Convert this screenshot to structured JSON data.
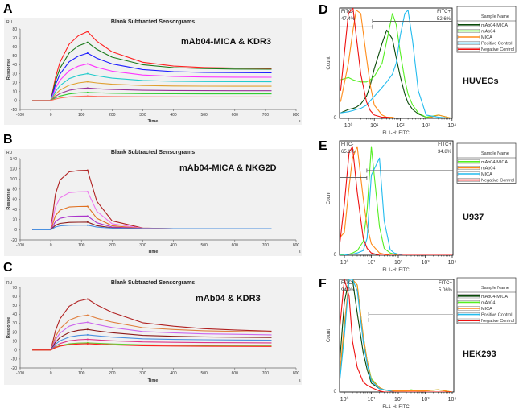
{
  "chart_data": [
    {
      "panel": "A",
      "type": "line",
      "title": "Blank Subtracted Sensorgrams",
      "annotation": "mAb04-MICA  & KDR3",
      "xlabel": "Time",
      "xunit": "s",
      "ylabel": "Response",
      "yunit": "RU",
      "xlim": [
        -100,
        800
      ],
      "ylim": [
        -10,
        80
      ],
      "ystep": 10,
      "xstep": 100,
      "grid": false,
      "x": [
        -60,
        0,
        15,
        30,
        60,
        90,
        120,
        150,
        200,
        300,
        400,
        500,
        600,
        720
      ],
      "series": [
        {
          "color": "#ff2020",
          "values": [
            0,
            0,
            25.4,
            42.8,
            63,
            72.4,
            77,
            66.3,
            54.4,
            42.8,
            38.5,
            36.9,
            36.3,
            36
          ]
        },
        {
          "color": "#1a7a1a",
          "values": [
            0,
            0,
            21.5,
            36.1,
            53.2,
            61.1,
            65,
            57.2,
            48.5,
            40,
            36.8,
            35.7,
            35.2,
            35
          ]
        },
        {
          "color": "#1a1aff",
          "values": [
            0,
            0,
            17.5,
            29.5,
            43.4,
            49.8,
            53,
            47.3,
            40.9,
            34.6,
            32.3,
            31.5,
            31.2,
            31
          ]
        },
        {
          "color": "#ff33ff",
          "values": [
            0,
            0,
            13.5,
            22.8,
            33.5,
            38.5,
            41,
            37.1,
            32.8,
            28.5,
            26.9,
            26.3,
            26.1,
            26
          ]
        },
        {
          "color": "#22cccc",
          "values": [
            0,
            0,
            9.9,
            16.7,
            24.5,
            28.2,
            30,
            27.7,
            25,
            22.5,
            21.5,
            21.2,
            21.1,
            21
          ]
        },
        {
          "color": "#e0a030",
          "values": [
            0,
            0,
            6.9,
            11.7,
            17.2,
            19.7,
            21,
            19.7,
            18.3,
            16.8,
            16.3,
            16.1,
            16,
            16
          ]
        },
        {
          "color": "#993399",
          "values": [
            0,
            0,
            4.6,
            7.8,
            11.5,
            13.2,
            14,
            13.2,
            12.4,
            11.5,
            11.2,
            11.1,
            11,
            11
          ]
        },
        {
          "color": "#33cc33",
          "values": [
            0,
            0,
            3,
            5,
            7.4,
            8.5,
            9,
            8.6,
            8.2,
            7.7,
            7.6,
            7.5,
            7.5,
            7.5
          ]
        },
        {
          "color": "#ff7060",
          "values": [
            0,
            0,
            1.6,
            2.8,
            4.1,
            4.7,
            5,
            4.7,
            4.5,
            4.2,
            4.1,
            4,
            4,
            4
          ]
        }
      ]
    },
    {
      "panel": "B",
      "type": "line",
      "title": "Blank Subtracted Sensorgrams",
      "annotation": "mAb04-MICA  & NKG2D",
      "xlabel": "Time",
      "xunit": "s",
      "ylabel": "Response",
      "yunit": "RU",
      "xlim": [
        -100,
        800
      ],
      "ylim": [
        -20,
        140
      ],
      "ystep": 20,
      "xstep": 100,
      "grid": false,
      "x": [
        -60,
        0,
        15,
        30,
        60,
        90,
        120,
        150,
        200,
        300,
        400,
        500,
        600,
        720
      ],
      "series": [
        {
          "color": "#b02020",
          "values": [
            0,
            0,
            69.4,
            97.7,
            113.8,
            116.4,
            117,
            56,
            17.5,
            3.3,
            2,
            2,
            2,
            2
          ]
        },
        {
          "color": "#ee77ee",
          "values": [
            0,
            0,
            44.5,
            62.6,
            73,
            74.6,
            75,
            36.3,
            11.9,
            2.8,
            2,
            2,
            2,
            2
          ]
        },
        {
          "color": "#e07020",
          "values": [
            0,
            0,
            27.3,
            38.4,
            44.8,
            45.8,
            46,
            22.6,
            7.9,
            2.5,
            2,
            2,
            2,
            2
          ]
        },
        {
          "color": "#aa33cc",
          "values": [
            0,
            0,
            16,
            22.5,
            26.3,
            26.9,
            27,
            13.7,
            5.3,
            2.3,
            2,
            2,
            2,
            2
          ]
        },
        {
          "color": "#8b1a1a",
          "values": [
            0,
            0,
            8.9,
            12.5,
            14.6,
            14.9,
            15,
            8,
            3.8,
            2.1,
            2,
            2,
            2,
            2
          ]
        },
        {
          "color": "#4a90e0",
          "values": [
            0,
            0,
            5.3,
            7.5,
            8.8,
            9,
            9,
            5.2,
            2.9,
            2,
            2,
            2,
            2,
            2
          ]
        }
      ]
    },
    {
      "panel": "C",
      "type": "line",
      "title": "Blank Subtracted Sensorgrams",
      "annotation": "mAb04 & KDR3",
      "xlabel": "Time",
      "xunit": "s",
      "ylabel": "Response",
      "yunit": "RU",
      "xlim": [
        -100,
        800
      ],
      "ylim": [
        -20,
        70
      ],
      "ystep": 10,
      "xstep": 100,
      "grid": false,
      "x": [
        -60,
        0,
        15,
        30,
        60,
        90,
        120,
        150,
        200,
        300,
        400,
        500,
        600,
        720
      ],
      "series": [
        {
          "color": "#b02020",
          "values": [
            0,
            0,
            21.2,
            34.8,
            48.9,
            54.7,
            57,
            50.5,
            42.1,
            30.5,
            26.6,
            23.8,
            22.4,
            21
          ]
        },
        {
          "color": "#e08040",
          "values": [
            0,
            0,
            14.5,
            23.8,
            33.5,
            37.4,
            39,
            35.6,
            31.2,
            25,
            22.9,
            21.5,
            20.8,
            20
          ]
        },
        {
          "color": "#cc66ee",
          "values": [
            0,
            0,
            11.5,
            18.9,
            26.6,
            29.7,
            31,
            28.5,
            25.2,
            20.7,
            19.2,
            18.1,
            17.6,
            17
          ]
        },
        {
          "color": "#8b1a1a",
          "values": [
            0,
            0,
            8.6,
            14,
            19.7,
            22,
            23,
            21.4,
            19.3,
            16.4,
            15.4,
            14.7,
            14.4,
            14
          ]
        },
        {
          "color": "#4a90e0",
          "values": [
            0,
            0,
            6.3,
            10.4,
            14.6,
            16.3,
            17,
            15.9,
            14.5,
            12.6,
            11.9,
            11.5,
            11.2,
            11
          ]
        },
        {
          "color": "#dd3388",
          "values": [
            0,
            0,
            4.5,
            7.3,
            10.3,
            11.5,
            12,
            11.3,
            10.3,
            9.1,
            8.6,
            8.3,
            8.2,
            8
          ]
        },
        {
          "color": "#66cc33",
          "values": [
            0,
            0,
            3,
            4.9,
            6.9,
            7.7,
            8,
            7.5,
            6.8,
            5.8,
            5.5,
            5.2,
            5.1,
            5
          ]
        },
        {
          "color": "#ff2020",
          "values": [
            0,
            0,
            2.6,
            4.3,
            6,
            6.7,
            7,
            6.5,
            5.8,
            4.8,
            4.5,
            4.2,
            4.1,
            4
          ]
        }
      ]
    },
    {
      "panel": "D",
      "type": "line",
      "xscale": "log",
      "xlabel": "FL1-H: FITC",
      "ylabel": "Count",
      "y_zero_label": "0",
      "xticks": [
        "10⁰",
        "10¹",
        "10²",
        "10³",
        "10⁴"
      ],
      "cell_line": "HUVECs",
      "gate_neg": {
        "label": "FITC-",
        "percent": "47.4%"
      },
      "gate_pos": {
        "label": "FITC+",
        "percent": "52.6%"
      },
      "gate_boundary": 8.5,
      "gate_neg_level_pct": 83,
      "gate_pos_level_pct": 88,
      "gate_color": "#555555",
      "legend_header": "Sample Name",
      "x": [
        0.5,
        1,
        1.5,
        2,
        3,
        5,
        7,
        10,
        20,
        30,
        50,
        70,
        100,
        150,
        200,
        300,
        500,
        1000,
        3000,
        10000
      ],
      "series": [
        {
          "name": "mAb04-MICA",
          "color": "#0a4a0a",
          "values": [
            5,
            8,
            9,
            10,
            13,
            20,
            30,
            45,
            68,
            80,
            72,
            55,
            38,
            22,
            14,
            8,
            4,
            1,
            0,
            0
          ]
        },
        {
          "name": "mAb04",
          "color": "#55ee22",
          "values": [
            35,
            37,
            35,
            34,
            33,
            33,
            35,
            38,
            50,
            70,
            95,
            85,
            60,
            35,
            22,
            12,
            5,
            1,
            3,
            0
          ]
        },
        {
          "name": "MICA",
          "color": "#ff8c1a",
          "values": [
            15,
            50,
            80,
            98,
            95,
            55,
            30,
            12,
            3,
            1,
            1,
            0,
            0,
            0,
            0,
            0,
            0,
            0,
            3,
            0
          ]
        },
        {
          "name": "Positive Control",
          "color": "#22bbee",
          "values": [
            5,
            6,
            7,
            8,
            9,
            12,
            16,
            20,
            28,
            33,
            40,
            50,
            75,
            95,
            98,
            70,
            25,
            3,
            1,
            0
          ]
        },
        {
          "name": "Negative Control",
          "color": "#ee1111",
          "values": [
            25,
            95,
            100,
            75,
            40,
            15,
            7,
            3,
            1,
            1,
            0,
            0,
            0,
            0,
            0,
            0,
            0,
            0,
            0,
            0
          ]
        }
      ]
    },
    {
      "panel": "E",
      "type": "line",
      "xscale": "log",
      "xlabel": "FL1-H: FITC",
      "ylabel": "Count",
      "y_zero_label": "0",
      "xticks": [
        "10⁰",
        "10¹",
        "10²",
        "10³",
        "10⁴"
      ],
      "cell_line": "U937",
      "gate_neg": {
        "label": "FITC-",
        "percent": "65.1%"
      },
      "gate_pos": {
        "label": "FITC+",
        "percent": "34.8%"
      },
      "gate_boundary": 6.8,
      "gate_neg_level_pct": 68,
      "gate_pos_level_pct": 74,
      "gate_color": "#555555",
      "legend_header": "Sample Name",
      "x": [
        0.5,
        1,
        1.5,
        2,
        3,
        5,
        7,
        10,
        20,
        30,
        50,
        70,
        100,
        150,
        200,
        300,
        500,
        1000,
        3000,
        10000
      ],
      "series": [
        {
          "name": "mAb04-MICA",
          "color": "#55ee22",
          "values": [
            0,
            1,
            1,
            2,
            4,
            12,
            40,
            95,
            25,
            6,
            2,
            1,
            0,
            0,
            0,
            0,
            0,
            0,
            0,
            0
          ]
        },
        {
          "name": "mAb04",
          "color": "#ff8c1a",
          "values": [
            15,
            20,
            60,
            85,
            95,
            50,
            25,
            10,
            2,
            1,
            0,
            0,
            0,
            0,
            0,
            0,
            0,
            0,
            0,
            0
          ]
        },
        {
          "name": "MICA",
          "color": "#22bbee",
          "values": [
            0,
            0,
            1,
            1,
            2,
            4,
            15,
            70,
            85,
            30,
            5,
            2,
            1,
            0,
            0,
            0,
            0,
            0,
            0,
            0
          ]
        },
        {
          "name": "Negative Control",
          "color": "#ee1111",
          "values": [
            8,
            45,
            90,
            95,
            55,
            15,
            6,
            2,
            0,
            0,
            0,
            0,
            0,
            0,
            0,
            0,
            0,
            0,
            0,
            0
          ]
        }
      ]
    },
    {
      "panel": "F",
      "type": "line",
      "xscale": "log",
      "xlabel": "FL1-H: FITC",
      "ylabel": "Count",
      "y_zero_label": "0",
      "xticks": [
        "10⁰",
        "10¹",
        "10²",
        "10³",
        "10⁴"
      ],
      "cell_line": "HEK293",
      "gate_neg": {
        "label": "FITC-",
        "percent": "94.9%"
      },
      "gate_pos": {
        "label": "FITC+",
        "percent": "5.06%"
      },
      "gate_boundary": 7.8,
      "gate_neg_level_pct": 64,
      "gate_pos_level_pct": 69,
      "gate_color": "#aaaaaa",
      "legend_header": "Sample Name",
      "x": [
        0.5,
        1,
        1.5,
        2,
        3,
        5,
        7,
        10,
        20,
        30,
        50,
        70,
        100,
        150,
        200,
        300,
        500,
        1000,
        3000,
        10000
      ],
      "series": [
        {
          "name": "mAb04-MICA",
          "color": "#0a4a0a",
          "values": [
            25,
            80,
            115,
            110,
            70,
            35,
            20,
            8,
            3,
            2,
            1,
            0,
            0,
            0,
            0,
            0,
            0,
            0,
            0,
            0
          ]
        },
        {
          "name": "mAb04",
          "color": "#55ee22",
          "values": [
            12,
            55,
            100,
            115,
            95,
            50,
            28,
            12,
            4,
            2,
            1,
            1,
            1,
            1,
            1,
            2,
            1,
            1,
            2,
            0
          ]
        },
        {
          "name": "MICA",
          "color": "#ff8c1a",
          "values": [
            15,
            60,
            105,
            115,
            95,
            50,
            28,
            11,
            4,
            2,
            1,
            1,
            1,
            1,
            1,
            1,
            1,
            1,
            2,
            0
          ]
        },
        {
          "name": "Positive Control",
          "color": "#22bbee",
          "values": [
            8,
            50,
            100,
            115,
            90,
            45,
            25,
            10,
            3,
            2,
            1,
            0,
            0,
            0,
            0,
            0,
            0,
            0,
            0,
            0
          ]
        },
        {
          "name": "Negative Control",
          "color": "#ee1111",
          "values": [
            55,
            115,
            85,
            45,
            22,
            9,
            6,
            4,
            1,
            0,
            0,
            0,
            0,
            0,
            0,
            0,
            0,
            0,
            0,
            0
          ]
        }
      ]
    }
  ]
}
